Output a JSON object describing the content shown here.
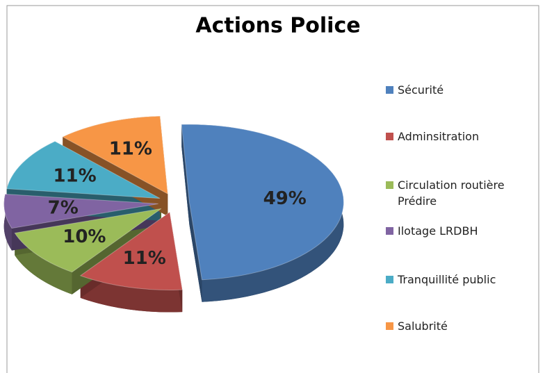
{
  "chart_data": {
    "type": "pie",
    "title": "Actions  Police",
    "categories": [
      "Sécurité",
      "Adminsitration",
      "Circulation routière Prédire",
      "Ilotage LRDBH",
      "Tranquillité public",
      "Salubrité"
    ],
    "values": [
      49,
      11,
      10,
      7,
      11,
      11
    ],
    "value_labels": [
      "49%",
      "11%",
      "10%",
      "7%",
      "11%",
      "11%"
    ],
    "colors": [
      "#4f81bd",
      "#c0504d",
      "#9bbb59",
      "#8064a2",
      "#4bacc6",
      "#f79646"
    ],
    "legend": "right"
  }
}
